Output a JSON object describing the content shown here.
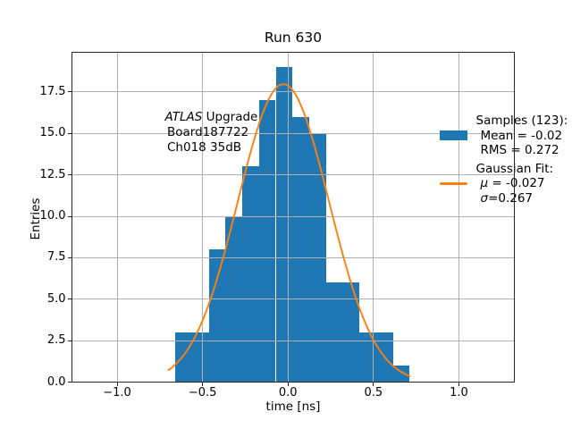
{
  "title": "Run 630",
  "axes": {
    "xlabel": "time [ns]",
    "ylabel": "Entries"
  },
  "annotation": {
    "brand_italic": "ATLAS",
    "brand_rest": " Upgrade",
    "board": "Board187722",
    "channel": "Ch018 35dB"
  },
  "legend": {
    "samples_header": "Samples (123):",
    "mean": "Mean = -0.02",
    "rms": "RMS = 0.272",
    "fit_header": "Gaussian Fit:",
    "mu_symbol": "μ",
    "mu_rest": " = -0.027",
    "sigma_symbol": "σ",
    "sigma_rest": "=0.267"
  },
  "colors": {
    "bar": "#1f77b4",
    "fit_line": "#ff7f0e",
    "grid": "#b0b0b0",
    "spine": "#262626",
    "text": "#000000"
  },
  "chart_data": {
    "type": "bar",
    "subtype": "histogram-with-gaussian-fit",
    "title": "Run 630",
    "xlabel": "time [ns]",
    "ylabel": "Entries",
    "xlim": [
      -1.267,
      1.327
    ],
    "ylim": [
      0,
      19.95
    ],
    "xticks": [
      -1.0,
      -0.5,
      0.0,
      0.5,
      1.0
    ],
    "xtick_labels": [
      "−1.0",
      "−0.5",
      "0.0",
      "0.5",
      "1.0"
    ],
    "yticks": [
      0.0,
      2.5,
      5.0,
      7.5,
      10.0,
      12.5,
      15.0,
      17.5
    ],
    "ytick_labels": [
      "0.0",
      "2.5",
      "5.0",
      "7.5",
      "10.0",
      "12.5",
      "15.0",
      "17.5"
    ],
    "grid": true,
    "grid_above_bars": true,
    "legend_position": "upper right",
    "series": [
      {
        "name": "Samples (123): Mean = -0.02 RMS = 0.272",
        "type": "histogram",
        "color": "#1f77b4",
        "n_samples": 123,
        "mean": -0.02,
        "rms": 0.272,
        "bin_start": -0.66,
        "bin_width": 0.098,
        "counts": [
          3,
          3,
          8,
          10,
          13,
          17,
          19,
          16,
          15,
          6,
          6,
          3,
          3,
          1
        ]
      },
      {
        "name": "Gaussian Fit: μ = -0.027 σ=0.267",
        "type": "line",
        "color": "#ff7f0e",
        "function": "gaussian",
        "amplitude": 18.0,
        "mu": -0.027,
        "sigma": 0.267,
        "x_min": -0.7,
        "x_max": 0.712
      }
    ]
  }
}
